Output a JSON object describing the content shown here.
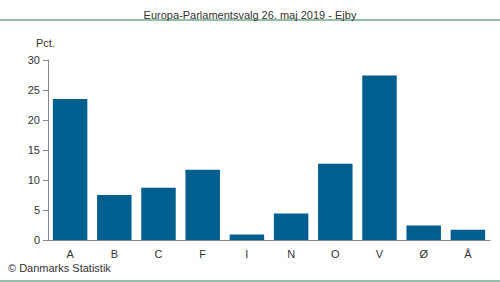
{
  "chart_data": {
    "type": "bar",
    "title": "Europa-Parlamentsvalg 26. maj 2019 - Ejby",
    "y_label": "Pct.",
    "source": "© Danmarks Statistik",
    "categories": [
      "A",
      "B",
      "C",
      "F",
      "I",
      "N",
      "O",
      "V",
      "Ø",
      "Å"
    ],
    "values": [
      23.5,
      7.5,
      8.7,
      11.7,
      0.9,
      4.4,
      12.7,
      27.4,
      2.4,
      1.7
    ],
    "color": "#005f8f",
    "ylim": [
      0,
      30
    ],
    "yticks": [
      0,
      5,
      10,
      15,
      20,
      25,
      30
    ],
    "grid": false
  }
}
